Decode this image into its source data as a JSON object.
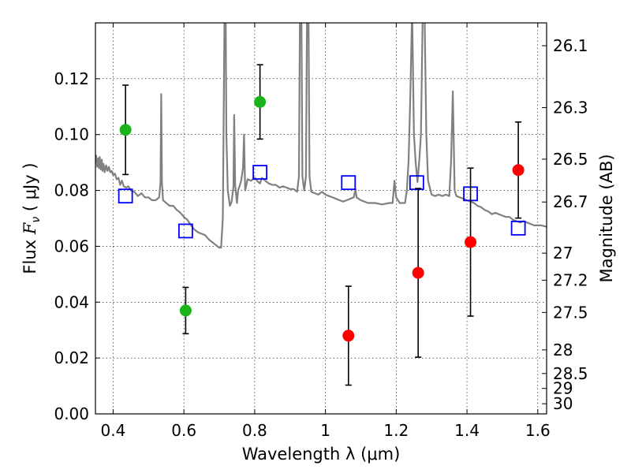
{
  "chart_data": {
    "type": "scatter",
    "xlabel": "Wavelength  λ (μm)",
    "ylabel_prefix": "Flux  ",
    "ylabel_symbol": "F",
    "ylabel_sub": "ν",
    "ylabel_suffix": "  ( μJy )",
    "y2label": "Magnitude (AB)",
    "xlim": [
      0.35,
      1.625
    ],
    "ylim": [
      0.0,
      0.14
    ],
    "xticks": [
      0.4,
      0.6,
      0.8,
      1.0,
      1.2,
      1.4,
      1.6
    ],
    "xtick_labels": [
      "0.4",
      "0.6",
      "0.8",
      "1",
      "1.2",
      "1.4",
      "1.6"
    ],
    "yticks": [
      0.0,
      0.02,
      0.04,
      0.06,
      0.08,
      0.1,
      0.12
    ],
    "ytick_labels": [
      "0.00",
      "0.02",
      "0.04",
      "0.06",
      "0.08",
      "0.10",
      "0.12"
    ],
    "y2ticks": [
      26.1,
      26.3,
      26.5,
      26.7,
      27,
      27.2,
      27.5,
      28,
      28.5,
      29,
      30
    ],
    "y2tick_labels": [
      "26.1",
      "26.3",
      "26.5",
      "26.7",
      "27",
      "27.2",
      "27.5",
      "28",
      "28.5",
      "29",
      "30"
    ],
    "grid": true,
    "series": [
      {
        "color": "#808080",
        "marker": "line",
        "points": [
          [
            0.35,
            0.0905
          ],
          [
            0.352,
            0.0925
          ],
          [
            0.355,
            0.0885
          ],
          [
            0.358,
            0.0915
          ],
          [
            0.36,
            0.088
          ],
          [
            0.362,
            0.092
          ],
          [
            0.365,
            0.0875
          ],
          [
            0.368,
            0.091
          ],
          [
            0.37,
            0.087
          ],
          [
            0.373,
            0.0895
          ],
          [
            0.376,
            0.0865
          ],
          [
            0.38,
            0.089
          ],
          [
            0.384,
            0.087
          ],
          [
            0.388,
            0.0885
          ],
          [
            0.392,
            0.0865
          ],
          [
            0.396,
            0.087
          ],
          [
            0.4,
            0.0855
          ],
          [
            0.405,
            0.086
          ],
          [
            0.41,
            0.084
          ],
          [
            0.415,
            0.0845
          ],
          [
            0.42,
            0.082
          ],
          [
            0.425,
            0.0835
          ],
          [
            0.43,
            0.0815
          ],
          [
            0.437,
            0.081
          ],
          [
            0.443,
            0.0815
          ],
          [
            0.45,
            0.08
          ],
          [
            0.46,
            0.0795
          ],
          [
            0.47,
            0.078
          ],
          [
            0.48,
            0.079
          ],
          [
            0.49,
            0.0775
          ],
          [
            0.5,
            0.0775
          ],
          [
            0.51,
            0.0765
          ],
          [
            0.52,
            0.0765
          ],
          [
            0.53,
            0.0775
          ],
          [
            0.534,
            0.083
          ],
          [
            0.536,
            0.1145
          ],
          [
            0.538,
            0.083
          ],
          [
            0.541,
            0.0765
          ],
          [
            0.55,
            0.0755
          ],
          [
            0.56,
            0.0745
          ],
          [
            0.57,
            0.0745
          ],
          [
            0.58,
            0.073
          ],
          [
            0.59,
            0.072
          ],
          [
            0.6,
            0.0705
          ],
          [
            0.61,
            0.0695
          ],
          [
            0.62,
            0.0675
          ],
          [
            0.63,
            0.066
          ],
          [
            0.64,
            0.065
          ],
          [
            0.65,
            0.0645
          ],
          [
            0.66,
            0.064
          ],
          [
            0.67,
            0.0625
          ],
          [
            0.68,
            0.0615
          ],
          [
            0.69,
            0.0605
          ],
          [
            0.7,
            0.0595
          ],
          [
            0.705,
            0.0595
          ],
          [
            0.71,
            0.07
          ],
          [
            0.712,
            0.1
          ],
          [
            0.715,
            0.145
          ],
          [
            0.718,
            0.145
          ],
          [
            0.72,
            0.1
          ],
          [
            0.724,
            0.08
          ],
          [
            0.73,
            0.0745
          ],
          [
            0.735,
            0.076
          ],
          [
            0.74,
            0.0815
          ],
          [
            0.742,
            0.107
          ],
          [
            0.745,
            0.0815
          ],
          [
            0.75,
            0.0755
          ],
          [
            0.753,
            0.08
          ],
          [
            0.757,
            0.0815
          ],
          [
            0.762,
            0.0835
          ],
          [
            0.767,
            0.088
          ],
          [
            0.77,
            0.1
          ],
          [
            0.773,
            0.08
          ],
          [
            0.78,
            0.084
          ],
          [
            0.79,
            0.0835
          ],
          [
            0.8,
            0.0845
          ],
          [
            0.81,
            0.083
          ],
          [
            0.815,
            0.0825
          ],
          [
            0.82,
            0.0845
          ],
          [
            0.83,
            0.0835
          ],
          [
            0.84,
            0.0825
          ],
          [
            0.85,
            0.082
          ],
          [
            0.86,
            0.082
          ],
          [
            0.87,
            0.081
          ],
          [
            0.88,
            0.0815
          ],
          [
            0.89,
            0.081
          ],
          [
            0.9,
            0.0805
          ],
          [
            0.91,
            0.0805
          ],
          [
            0.92,
            0.0795
          ],
          [
            0.925,
            0.085
          ],
          [
            0.928,
            0.145
          ],
          [
            0.932,
            0.145
          ],
          [
            0.935,
            0.085
          ],
          [
            0.94,
            0.08
          ],
          [
            0.945,
            0.085
          ],
          [
            0.948,
            0.145
          ],
          [
            0.952,
            0.145
          ],
          [
            0.955,
            0.085
          ],
          [
            0.96,
            0.0795
          ],
          [
            0.97,
            0.079
          ],
          [
            0.98,
            0.0785
          ],
          [
            0.99,
            0.0795
          ],
          [
            1.0,
            0.0785
          ],
          [
            1.01,
            0.078
          ],
          [
            1.02,
            0.0775
          ],
          [
            1.03,
            0.077
          ],
          [
            1.04,
            0.0765
          ],
          [
            1.05,
            0.076
          ],
          [
            1.06,
            0.0765
          ],
          [
            1.07,
            0.077
          ],
          [
            1.08,
            0.0775
          ],
          [
            1.085,
            0.0805
          ],
          [
            1.088,
            0.0775
          ],
          [
            1.1,
            0.0765
          ],
          [
            1.12,
            0.0755
          ],
          [
            1.14,
            0.0755
          ],
          [
            1.16,
            0.075
          ],
          [
            1.18,
            0.0755
          ],
          [
            1.19,
            0.0755
          ],
          [
            1.195,
            0.0835
          ],
          [
            1.2,
            0.0775
          ],
          [
            1.21,
            0.0755
          ],
          [
            1.22,
            0.0755
          ],
          [
            1.225,
            0.0755
          ],
          [
            1.23,
            0.08
          ],
          [
            1.235,
            0.0905
          ],
          [
            1.24,
            0.115
          ],
          [
            1.245,
            0.145
          ],
          [
            1.25,
            0.1
          ],
          [
            1.255,
            0.09
          ],
          [
            1.26,
            0.083
          ],
          [
            1.265,
            0.0905
          ],
          [
            1.27,
            0.1
          ],
          [
            1.275,
            0.145
          ],
          [
            1.28,
            0.145
          ],
          [
            1.285,
            0.1
          ],
          [
            1.29,
            0.0835
          ],
          [
            1.3,
            0.0785
          ],
          [
            1.31,
            0.078
          ],
          [
            1.32,
            0.0785
          ],
          [
            1.33,
            0.078
          ],
          [
            1.34,
            0.0785
          ],
          [
            1.35,
            0.078
          ],
          [
            1.355,
            0.0905
          ],
          [
            1.36,
            0.1155
          ],
          [
            1.365,
            0.08
          ],
          [
            1.37,
            0.078
          ],
          [
            1.38,
            0.0775
          ],
          [
            1.39,
            0.077
          ],
          [
            1.4,
            0.0765
          ],
          [
            1.41,
            0.076
          ],
          [
            1.42,
            0.0755
          ],
          [
            1.43,
            0.0745
          ],
          [
            1.44,
            0.074
          ],
          [
            1.45,
            0.073
          ],
          [
            1.46,
            0.0725
          ],
          [
            1.47,
            0.0715
          ],
          [
            1.48,
            0.072
          ],
          [
            1.49,
            0.0715
          ],
          [
            1.5,
            0.071
          ],
          [
            1.51,
            0.0705
          ],
          [
            1.52,
            0.0705
          ],
          [
            1.53,
            0.0695
          ],
          [
            1.54,
            0.069
          ],
          [
            1.55,
            0.0685
          ],
          [
            1.56,
            0.069
          ],
          [
            1.57,
            0.0685
          ],
          [
            1.58,
            0.068
          ],
          [
            1.59,
            0.0675
          ],
          [
            1.6,
            0.0675
          ],
          [
            1.61,
            0.0675
          ],
          [
            1.625,
            0.067
          ]
        ]
      },
      {
        "color": "#0000ff",
        "marker": "open-square",
        "points": [
          [
            0.435,
            0.078
          ],
          [
            0.605,
            0.0655
          ],
          [
            0.815,
            0.0865
          ],
          [
            1.065,
            0.0828
          ],
          [
            1.258,
            0.0828
          ],
          [
            1.41,
            0.0788
          ],
          [
            1.545,
            0.0665
          ]
        ]
      },
      {
        "color": "#1ab41a",
        "marker": "circle",
        "points": [
          [
            0.435,
            0.1017
          ],
          [
            0.605,
            0.037
          ],
          [
            0.815,
            0.1117
          ]
        ],
        "yerr": [
          0.016,
          0.0083,
          0.0133
        ]
      },
      {
        "color": "#ff0000",
        "marker": "circle",
        "points": [
          [
            1.065,
            0.028
          ],
          [
            1.262,
            0.0505
          ],
          [
            1.41,
            0.0615
          ],
          [
            1.545,
            0.0873
          ]
        ],
        "yerr": [
          0.0177,
          0.0302,
          0.0265,
          0.0172
        ]
      }
    ]
  }
}
